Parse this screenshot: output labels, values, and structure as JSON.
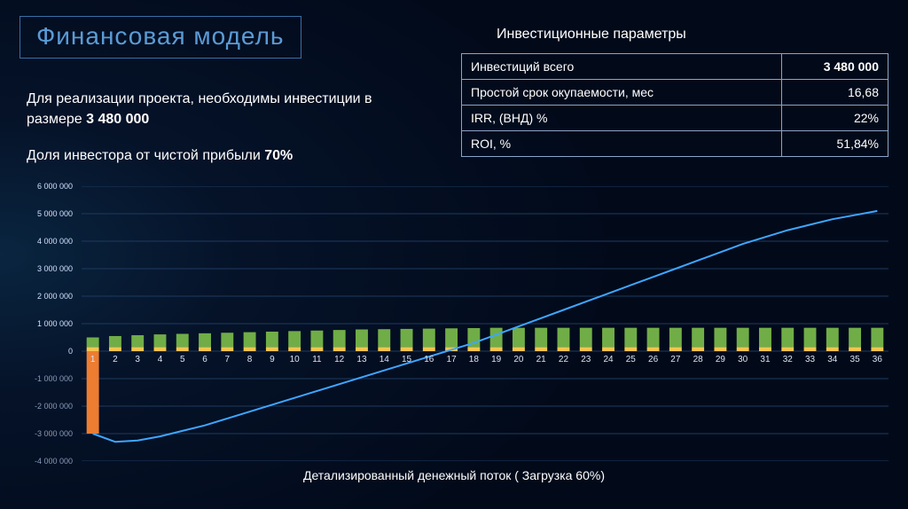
{
  "title": "Финансовая модель",
  "intro_line1_a": "Для реализации проекта, необходимы инвестиции в размере ",
  "intro_line1_b": "3 480 000",
  "intro_line2_a": "Доля инвестора от чистой прибыли ",
  "intro_line2_b": "70%",
  "params_title": "Инвестиционные параметры",
  "params_rows": [
    {
      "label": "Инвестиций всего",
      "value": "3 480 000"
    },
    {
      "label": "Простой срок окупаемости, мес",
      "value": "16,68"
    },
    {
      "label": "IRR, (ВНД) %",
      "value": "22%"
    },
    {
      "label": "ROI, %",
      "value": "51,84%"
    }
  ],
  "chart": {
    "type": "bar+line",
    "n": 36,
    "ylim": [
      -4000000,
      6000000
    ],
    "ytick_step": 1000000,
    "yticks": [
      6000000,
      5000000,
      4000000,
      3000000,
      2000000,
      1000000,
      0,
      -1000000,
      -2000000,
      -3000000,
      -4000000
    ],
    "ytick_labels": [
      "6 000 000",
      "5 000 000",
      "4 000 000",
      "3 000 000",
      "2 000 000",
      "1 000 000",
      "0",
      "-1 000 000",
      "-2 000 000",
      "-3 000 000",
      "-4 000 000"
    ],
    "bars_neg": [
      -3000000,
      0,
      0,
      0,
      0,
      0,
      0,
      0,
      0,
      0,
      0,
      0,
      0,
      0,
      0,
      0,
      0,
      0,
      0,
      0,
      0,
      0,
      0,
      0,
      0,
      0,
      0,
      0,
      0,
      0,
      0,
      0,
      0,
      0,
      0,
      0
    ],
    "bars_yel": [
      150000,
      150000,
      150000,
      150000,
      150000,
      150000,
      150000,
      150000,
      150000,
      150000,
      150000,
      150000,
      150000,
      150000,
      150000,
      150000,
      150000,
      150000,
      150000,
      150000,
      150000,
      150000,
      150000,
      150000,
      150000,
      150000,
      150000,
      150000,
      150000,
      150000,
      150000,
      150000,
      150000,
      150000,
      150000,
      150000
    ],
    "bars_grn": [
      350000,
      400000,
      430000,
      460000,
      480000,
      500000,
      520000,
      540000,
      560000,
      580000,
      600000,
      620000,
      640000,
      650000,
      660000,
      670000,
      680000,
      690000,
      700000,
      700000,
      700000,
      700000,
      700000,
      700000,
      700000,
      700000,
      700000,
      700000,
      700000,
      700000,
      700000,
      700000,
      700000,
      700000,
      700000,
      700000
    ],
    "line": [
      -3000000,
      -3300000,
      -3250000,
      -3100000,
      -2900000,
      -2700000,
      -2450000,
      -2200000,
      -1950000,
      -1700000,
      -1450000,
      -1200000,
      -950000,
      -700000,
      -450000,
      -200000,
      50000,
      300000,
      600000,
      900000,
      1200000,
      1500000,
      1800000,
      2100000,
      2400000,
      2700000,
      3000000,
      3300000,
      3600000,
      3900000,
      4150000,
      4400000,
      4600000,
      4800000,
      4950000,
      5100000
    ],
    "bar_colors": {
      "neg": "#ed7d31",
      "yel": "#f6c450",
      "grn": "#70ad47"
    },
    "line_color": "#3ea6ff",
    "grid_color": "#1e3a5f",
    "background": "transparent",
    "bar_full_width": 0.55,
    "x_label_fontsize": 10,
    "y_label_fontsize": 9,
    "bottom_title": "Детализированный денежный поток ( Загрузка 60%)"
  }
}
